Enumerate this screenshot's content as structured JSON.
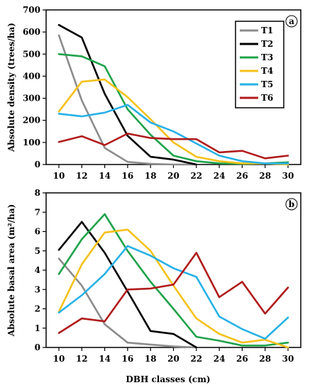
{
  "chart_data": [
    {
      "type": "line",
      "panel_label": "a",
      "x": [
        10,
        12,
        14,
        16,
        18,
        20,
        22,
        24,
        26,
        28,
        30
      ],
      "xticks": [
        10,
        12,
        14,
        16,
        18,
        20,
        22,
        24,
        26,
        28,
        30
      ],
      "ylabel": "Absolute density (trees/ha)",
      "ylim": [
        0,
        700
      ],
      "yticks": [
        0,
        100,
        200,
        300,
        400,
        500,
        600,
        700
      ],
      "legend": "top-right",
      "series": [
        {
          "name": "T1",
          "color": "#8c8c8c",
          "values": [
            585,
            290,
            75,
            12,
            3,
            0,
            0,
            null,
            null,
            null,
            null
          ]
        },
        {
          "name": "T2",
          "color": "#000000",
          "values": [
            632,
            575,
            320,
            130,
            35,
            22,
            0,
            null,
            null,
            null,
            null
          ]
        },
        {
          "name": "T3",
          "color": "#1fa24a",
          "values": [
            500,
            490,
            445,
            250,
            135,
            40,
            15,
            5,
            3,
            5,
            10
          ]
        },
        {
          "name": "T4",
          "color": "#f5c11a",
          "values": [
            240,
            375,
            385,
            305,
            205,
            100,
            35,
            15,
            5,
            5,
            0
          ]
        },
        {
          "name": "T5",
          "color": "#27b1e6",
          "values": [
            230,
            218,
            235,
            270,
            190,
            150,
            95,
            40,
            15,
            5,
            5
          ]
        },
        {
          "name": "T6",
          "color": "#b01b1b",
          "values": [
            102,
            128,
            88,
            140,
            120,
            115,
            115,
            55,
            62,
            28,
            40
          ]
        }
      ]
    },
    {
      "type": "line",
      "panel_label": "b",
      "x": [
        10,
        12,
        14,
        16,
        18,
        20,
        22,
        24,
        26,
        28,
        30
      ],
      "xticks": [
        10,
        12,
        14,
        16,
        18,
        20,
        22,
        24,
        26,
        28,
        30
      ],
      "xlabel": "DBH classes (cm)",
      "ylabel": "Absolute basal area (m²/ha)",
      "ylim": [
        0,
        8
      ],
      "yticks": [
        0,
        1,
        2,
        3,
        4,
        5,
        6,
        7,
        8
      ],
      "series": [
        {
          "name": "T1",
          "color": "#8c8c8c",
          "values": [
            4.6,
            3.2,
            1.2,
            0.25,
            0.15,
            0.05,
            0,
            null,
            null,
            null,
            null
          ]
        },
        {
          "name": "T2",
          "color": "#000000",
          "values": [
            5.05,
            6.5,
            4.9,
            2.9,
            0.85,
            0.7,
            0,
            null,
            null,
            null,
            null
          ]
        },
        {
          "name": "T3",
          "color": "#1fa24a",
          "values": [
            3.8,
            5.6,
            6.9,
            5.0,
            3.4,
            2.0,
            0.55,
            0.35,
            0.1,
            0.1,
            0.25
          ]
        },
        {
          "name": "T4",
          "color": "#f5c11a",
          "values": [
            1.85,
            4.3,
            5.95,
            6.1,
            5.0,
            3.2,
            1.5,
            0.7,
            0.25,
            0.4,
            0
          ]
        },
        {
          "name": "T5",
          "color": "#27b1e6",
          "values": [
            1.8,
            2.7,
            3.8,
            5.25,
            4.75,
            4.1,
            3.65,
            1.6,
            0.95,
            0.45,
            1.55
          ]
        },
        {
          "name": "T6",
          "color": "#b01b1b",
          "values": [
            0.75,
            1.5,
            1.35,
            3.0,
            3.05,
            3.25,
            4.9,
            2.6,
            3.4,
            1.75,
            3.1
          ]
        }
      ]
    }
  ]
}
